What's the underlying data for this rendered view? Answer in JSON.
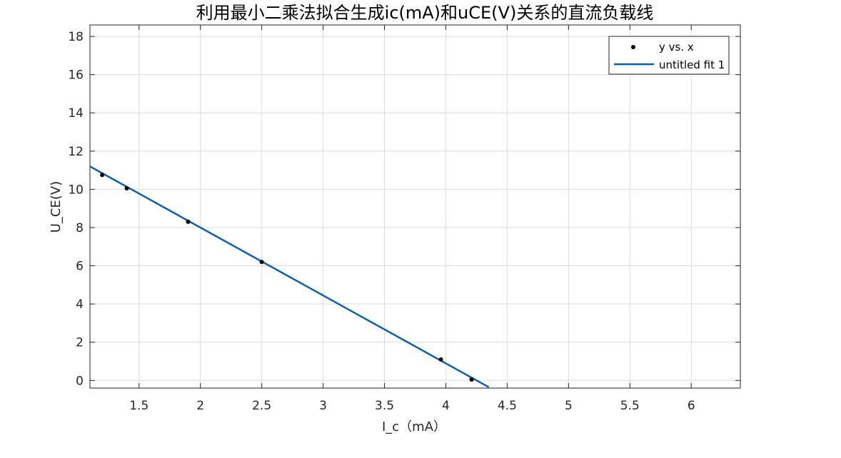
{
  "chart_data": {
    "type": "scatter",
    "title": "利用最小二乘法拟合生成ic(mA)和uCE(V)关系的直流负载线",
    "xlabel": "I_c（mA）",
    "ylabel": "U_CE(V)",
    "xlim": [
      1.1,
      6.4
    ],
    "ylim": [
      -0.4,
      18.6
    ],
    "xticks": [
      1.5,
      2,
      2.5,
      3,
      3.5,
      4,
      4.5,
      5,
      5.5,
      6
    ],
    "xtick_labels": [
      "1.5",
      "2",
      "2.5",
      "3",
      "3.5",
      "4",
      "4.5",
      "5",
      "5.5",
      "6"
    ],
    "yticks": [
      0,
      2,
      4,
      6,
      8,
      10,
      12,
      14,
      16,
      18
    ],
    "ytick_labels": [
      "0",
      "2",
      "4",
      "6",
      "8",
      "10",
      "12",
      "14",
      "16",
      "18"
    ],
    "grid": true,
    "legend_position": "top-right",
    "series": [
      {
        "name": "y vs. x",
        "kind": "scatter",
        "color": "#000000",
        "x": [
          1.2,
          1.4,
          1.9,
          2.5,
          3.96,
          4.21
        ],
        "y": [
          10.75,
          10.05,
          8.3,
          6.2,
          1.1,
          0.05
        ]
      },
      {
        "name": "untitled fit 1",
        "kind": "line",
        "color": "#0f5fa8",
        "x": [
          1.1,
          4.35
        ],
        "y": [
          11.2,
          -0.35
        ]
      }
    ]
  }
}
